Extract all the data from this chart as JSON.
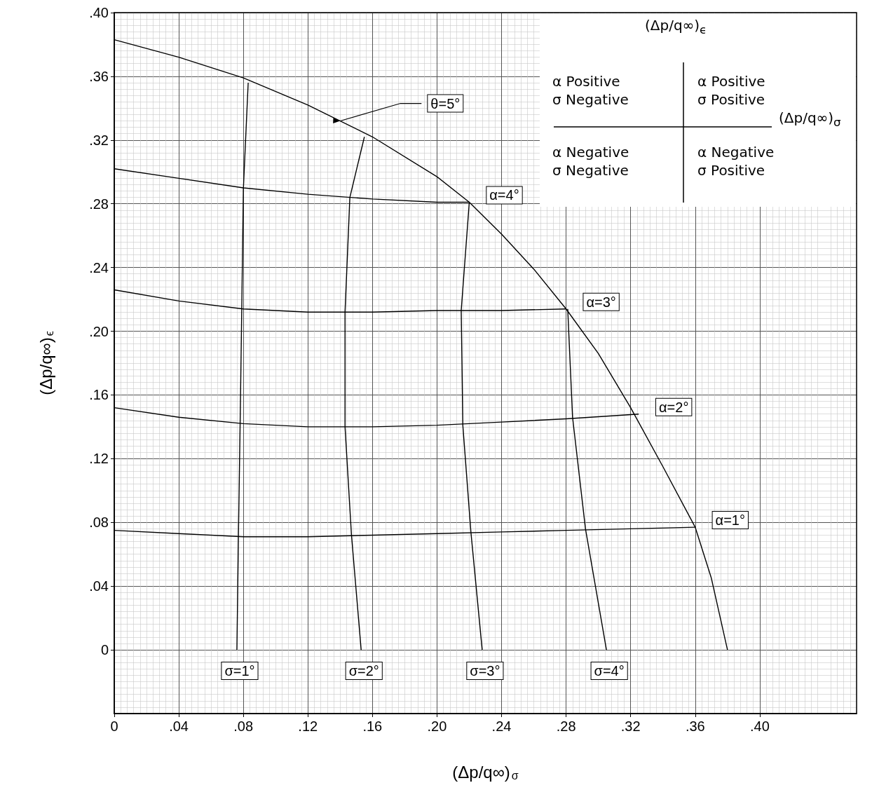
{
  "chart_data": {
    "type": "line",
    "xlabel": "(Δp/q∞)$_{σ}$",
    "ylabel": "(Δp/q∞)$_{ϵ}$",
    "xlim": [
      0,
      0.46
    ],
    "ylim": [
      -0.04,
      0.4
    ],
    "xticks": [
      0,
      {
        "value": 0.04,
        "label": ".04"
      },
      {
        "value": 0.08,
        "label": ".08"
      },
      {
        "value": 0.12,
        "label": ".12"
      },
      {
        "value": 0.16,
        "label": ".16"
      },
      {
        "value": 0.2,
        "label": ".20"
      },
      {
        "value": 0.24,
        "label": ".24"
      },
      {
        "value": 0.28,
        "label": ".28"
      },
      {
        "value": 0.32,
        "label": ".32"
      },
      {
        "value": 0.36,
        "label": ".36"
      },
      {
        "value": 0.4,
        "label": ".40"
      }
    ],
    "yticks": [
      0,
      {
        "value": 0.04,
        "label": ".04"
      },
      {
        "value": 0.08,
        "label": ".08"
      },
      {
        "value": 0.12,
        "label": ".12"
      },
      {
        "value": 0.16,
        "label": ".16"
      },
      {
        "value": 0.2,
        "label": ".20"
      },
      {
        "value": 0.24,
        "label": ".24"
      },
      {
        "value": 0.28,
        "label": ".28"
      },
      {
        "value": 0.32,
        "label": ".32"
      },
      {
        "value": 0.36,
        "label": ".36"
      },
      {
        "value": 0.4,
        "label": ".40"
      }
    ],
    "grid": true,
    "marker": "none",
    "line_style": "solid",
    "series": [
      {
        "color": "#000000",
        "x": [
          0,
          0.04,
          0.08,
          0.12,
          0.16,
          0.2,
          0.22,
          0.24,
          0.26,
          0.28,
          0.3,
          0.32,
          0.34,
          0.36,
          0.37,
          0.38
        ],
        "values": [
          0.383,
          0.372,
          0.359,
          0.342,
          0.322,
          0.297,
          0.281,
          0.261,
          0.239,
          0.214,
          0.186,
          0.152,
          0.115,
          0.077,
          0.045,
          0
        ]
      },
      {
        "color": "#000000",
        "x": [
          0,
          0.04,
          0.08,
          0.12,
          0.16,
          0.2,
          0.22
        ],
        "values": [
          0.302,
          0.296,
          0.29,
          0.286,
          0.283,
          0.281,
          0.281
        ]
      },
      {
        "color": "#000000",
        "x": [
          0,
          0.04,
          0.08,
          0.12,
          0.16,
          0.2,
          0.24,
          0.28
        ],
        "values": [
          0.226,
          0.219,
          0.214,
          0.212,
          0.212,
          0.213,
          0.213,
          0.214
        ]
      },
      {
        "color": "#000000",
        "x": [
          0,
          0.04,
          0.08,
          0.12,
          0.16,
          0.2,
          0.24,
          0.28,
          0.325
        ],
        "values": [
          0.152,
          0.146,
          0.142,
          0.14,
          0.14,
          0.141,
          0.143,
          0.145,
          0.148
        ]
      },
      {
        "color": "#000000",
        "x": [
          0,
          0.04,
          0.08,
          0.12,
          0.16,
          0.2,
          0.24,
          0.28,
          0.32,
          0.36
        ],
        "values": [
          0.075,
          0.073,
          0.071,
          0.071,
          0.072,
          0.073,
          0.074,
          0.075,
          0.076,
          0.077
        ]
      },
      {
        "color": "#000000",
        "x": [
          0.076,
          0.077,
          0.078,
          0.079,
          0.08,
          0.083
        ],
        "values": [
          0,
          0.075,
          0.142,
          0.213,
          0.289,
          0.356
        ]
      },
      {
        "color": "#000000",
        "x": [
          0.153,
          0.147,
          0.143,
          0.143,
          0.146,
          0.155
        ],
        "values": [
          0,
          0.072,
          0.14,
          0.212,
          0.284,
          0.322
        ]
      },
      {
        "color": "#000000",
        "x": [
          0.228,
          0.221,
          0.216,
          0.215,
          0.22
        ],
        "values": [
          0,
          0.074,
          0.141,
          0.213,
          0.281
        ]
      },
      {
        "color": "#000000",
        "x": [
          0.305,
          0.292,
          0.284,
          0.281
        ],
        "values": [
          0,
          0.076,
          0.146,
          0.214
        ]
      }
    ],
    "annotations": [
      {
        "text": "θ=5°",
        "x": 0.14,
        "y": 0.332
      },
      {
        "text": "α=4°",
        "x": 0.22,
        "y": 0.281
      },
      {
        "text": "α=3°",
        "x": 0.28,
        "y": 0.214
      },
      {
        "text": "α=2°",
        "x": 0.325,
        "y": 0.148
      },
      {
        "text": "α=1°",
        "x": 0.36,
        "y": 0.077
      },
      {
        "text": "σ=1°",
        "x": 0.076,
        "y": 0
      },
      {
        "text": "σ=2°",
        "x": 0.153,
        "y": 0
      },
      {
        "text": "σ=3°",
        "x": 0.228,
        "y": 0
      },
      {
        "text": "σ=4°",
        "x": 0.305,
        "y": 0
      },
      "(Δp/q∞)$_{ϵ}$",
      "α Positive\nσ Negative",
      "α Positive\nσ Positive",
      "(Δp/q∞)$_{σ}$",
      "α Negative\nσ Negative",
      "α Negative\nσ Positive"
    ]
  }
}
